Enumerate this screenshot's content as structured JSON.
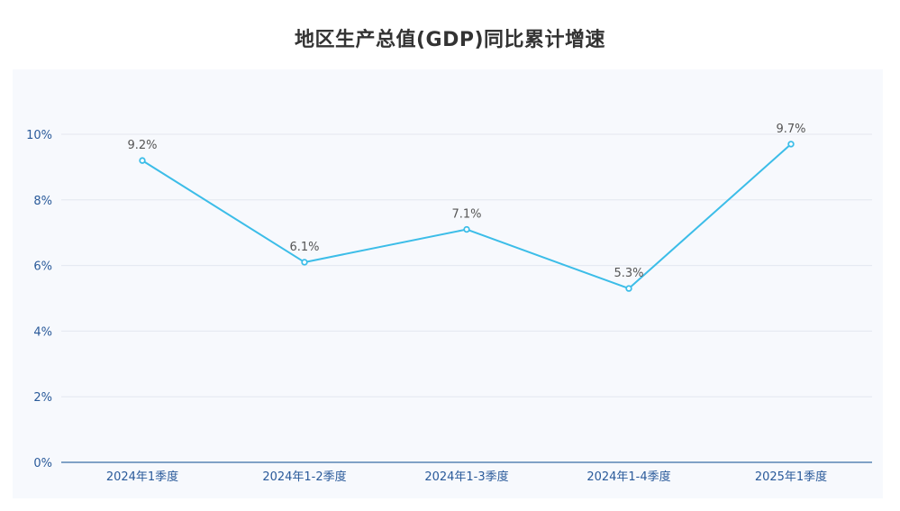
{
  "title": "地区生产总值(GDP)同比累计增速",
  "colors": {
    "line": "#3cbde8",
    "panel_background": "#f7f9fd",
    "grid": "#e4e8f0",
    "axis": "#3a6ea5",
    "tick_text": "#2a5a9a",
    "label_text": "#555555"
  },
  "chart_data": {
    "type": "line",
    "title": "地区生产总值(GDP)同比累计增速",
    "categories": [
      "2024年1季度",
      "2024年1-2季度",
      "2024年1-3季度",
      "2024年1-4季度",
      "2025年1季度"
    ],
    "series": [
      {
        "values": [
          9.2,
          6.1,
          7.1,
          5.3,
          9.7
        ],
        "data_labels": [
          "9.2%",
          "6.1%",
          "7.1%",
          "5.3%",
          "9.7%"
        ]
      }
    ],
    "xlabel": "",
    "ylabel": "",
    "ylim": [
      0,
      10
    ],
    "yticks": [
      0,
      2,
      4,
      6,
      8,
      10
    ],
    "ytick_labels": [
      "0%",
      "2%",
      "4%",
      "6%",
      "8%",
      "10%"
    ],
    "grid": true,
    "legend": "none"
  }
}
